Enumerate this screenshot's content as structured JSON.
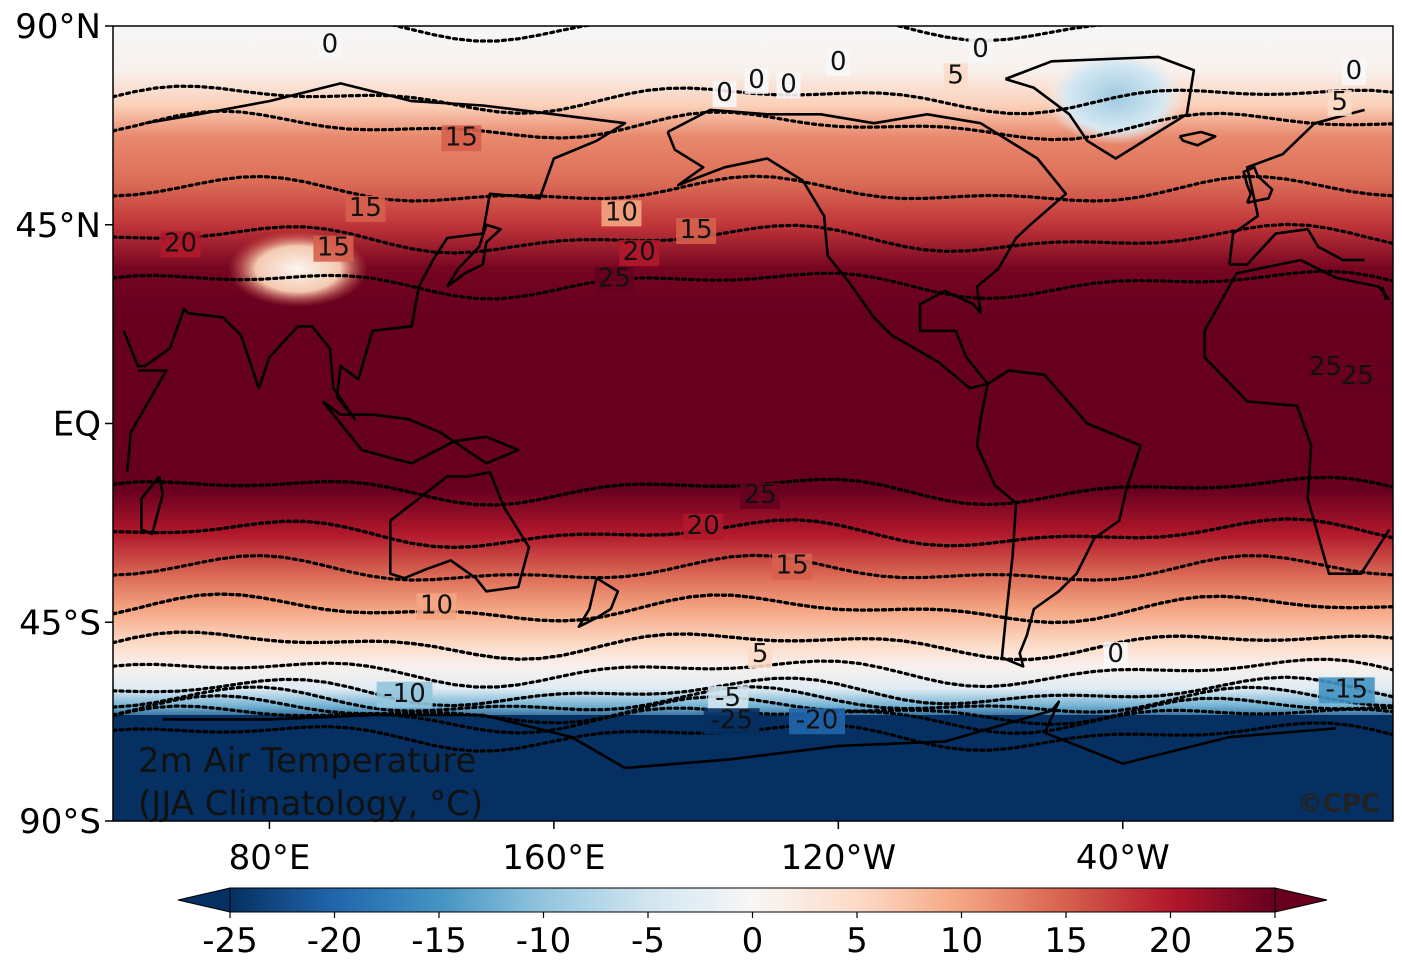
{
  "chart_data": {
    "type": "heatmap",
    "title_lines": [
      "2m Air Temperature",
      "(JJA Climatology, °C)"
    ],
    "credit": "©CPC",
    "variable": "2m Air Temperature",
    "season": "JJA",
    "units": "°C",
    "projection": "equirectangular, central longitude 180°",
    "lat_range": [
      -90,
      90
    ],
    "lon_range": [
      36,
      396
    ],
    "colormap": "RdBu_r",
    "color_range": [
      -25,
      25
    ],
    "colorbar": {
      "ticks": [
        "-25",
        "-20",
        "-15",
        "-10",
        "-5",
        "0",
        "5",
        "10",
        "15",
        "20",
        "25"
      ],
      "tick_values": [
        -25,
        -20,
        -15,
        -10,
        -5,
        0,
        5,
        10,
        15,
        20,
        25
      ],
      "extend": "both"
    },
    "y_ticks": [
      {
        "label": "90°N",
        "lat": 90
      },
      {
        "label": "45°N",
        "lat": 45
      },
      {
        "label": "EQ",
        "lat": 0
      },
      {
        "label": "45°S",
        "lat": -45
      },
      {
        "label": "90°S",
        "lat": -90
      }
    ],
    "x_ticks": [
      {
        "label": "80°E",
        "lon": 80
      },
      {
        "label": "160°E",
        "lon": 160
      },
      {
        "label": "120°W",
        "lon": 240
      },
      {
        "label": "40°W",
        "lon": 320
      }
    ],
    "zonal_profile": [
      {
        "lat": 90,
        "value": 0
      },
      {
        "lat": 80,
        "value": 1
      },
      {
        "lat": 72,
        "value": 6
      },
      {
        "lat": 65,
        "value": 12
      },
      {
        "lat": 55,
        "value": 14
      },
      {
        "lat": 45,
        "value": 18
      },
      {
        "lat": 35,
        "value": 24
      },
      {
        "lat": 25,
        "value": 27
      },
      {
        "lat": 10,
        "value": 28
      },
      {
        "lat": -5,
        "value": 27
      },
      {
        "lat": -15,
        "value": 25
      },
      {
        "lat": -25,
        "value": 20
      },
      {
        "lat": -35,
        "value": 14
      },
      {
        "lat": -42,
        "value": 10
      },
      {
        "lat": -50,
        "value": 5
      },
      {
        "lat": -55,
        "value": 1
      },
      {
        "lat": -60,
        "value": -3
      },
      {
        "lat": -64,
        "value": -12
      },
      {
        "lat": -68,
        "value": -24
      },
      {
        "lat": -90,
        "value": -32
      }
    ],
    "contour_levels": [
      -25,
      -20,
      -15,
      -10,
      -5,
      0,
      5,
      10,
      15,
      20,
      25
    ],
    "contour_labels": [
      {
        "text": "0",
        "lon": 97,
        "lat": 84
      },
      {
        "text": "0",
        "lon": 240,
        "lat": 80
      },
      {
        "text": "0",
        "lon": 280,
        "lat": 83
      },
      {
        "text": "0",
        "lon": 217,
        "lat": 76
      },
      {
        "text": "0",
        "lon": 226,
        "lat": 75
      },
      {
        "text": "0",
        "lon": 208,
        "lat": 73
      },
      {
        "text": "0",
        "lon": 385,
        "lat": 78
      },
      {
        "text": "5",
        "lon": 273,
        "lat": 77
      },
      {
        "text": "5",
        "lon": 381,
        "lat": 71
      },
      {
        "text": "15",
        "lon": 134,
        "lat": 63
      },
      {
        "text": "15",
        "lon": 107,
        "lat": 47
      },
      {
        "text": "15",
        "lon": 98,
        "lat": 38
      },
      {
        "text": "20",
        "lon": 55,
        "lat": 39
      },
      {
        "text": "10",
        "lon": 179,
        "lat": 46
      },
      {
        "text": "15",
        "lon": 200,
        "lat": 42
      },
      {
        "text": "20",
        "lon": 184,
        "lat": 37
      },
      {
        "text": "25",
        "lon": 177,
        "lat": 31
      },
      {
        "text": "25",
        "lon": 386,
        "lat": 9
      },
      {
        "text": "25",
        "lon": 377,
        "lat": 11
      },
      {
        "text": "25",
        "lon": 218,
        "lat": -18
      },
      {
        "text": "20",
        "lon": 202,
        "lat": -25
      },
      {
        "text": "15",
        "lon": 227,
        "lat": -34
      },
      {
        "text": "10",
        "lon": 127,
        "lat": -43
      },
      {
        "text": "5",
        "lon": 218,
        "lat": -54
      },
      {
        "text": "0",
        "lon": 318,
        "lat": -54
      },
      {
        "text": "-10",
        "lon": 118,
        "lat": -63
      },
      {
        "text": "-5",
        "lon": 209,
        "lat": -64
      },
      {
        "text": "-25",
        "lon": 210,
        "lat": -69
      },
      {
        "text": "-20",
        "lon": 234,
        "lat": -69
      },
      {
        "text": "-15",
        "lon": 383,
        "lat": -62
      }
    ],
    "regional_features": [
      {
        "name": "Greenland cold anomaly",
        "lon": 318,
        "lat": 74,
        "value": -3
      },
      {
        "name": "Tibetan Plateau",
        "lon": 88,
        "lat": 35,
        "value": 4
      },
      {
        "name": "Antarctica",
        "lon": 210,
        "lat": -80,
        "value": -30
      }
    ]
  }
}
